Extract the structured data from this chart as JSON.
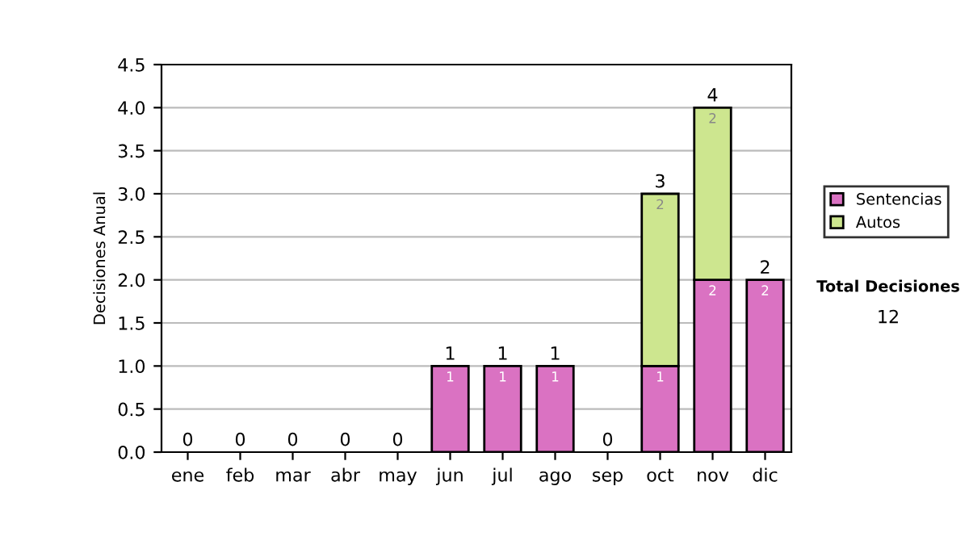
{
  "chart_data": {
    "type": "bar",
    "stacked": true,
    "ylabel": "Decisiones Anual",
    "categories": [
      "ene",
      "feb",
      "mar",
      "abr",
      "may",
      "jun",
      "jul",
      "ago",
      "sep",
      "oct",
      "nov",
      "dic"
    ],
    "series": [
      {
        "name": "Sentencias",
        "color": "#da72c2",
        "values": [
          0,
          0,
          0,
          0,
          0,
          1,
          1,
          1,
          0,
          1,
          2,
          2
        ],
        "value_labels": [
          null,
          null,
          null,
          null,
          null,
          "1",
          "1",
          "1",
          null,
          "1",
          "2",
          "2"
        ]
      },
      {
        "name": "Autos",
        "color": "#cde68f",
        "values": [
          0,
          0,
          0,
          0,
          0,
          0,
          0,
          0,
          0,
          2,
          2,
          0
        ],
        "value_labels": [
          null,
          null,
          null,
          null,
          null,
          null,
          null,
          null,
          null,
          "2",
          "2",
          null
        ]
      }
    ],
    "totals": [
      "0",
      "0",
      "0",
      "0",
      "0",
      "1",
      "1",
      "1",
      "0",
      "3",
      "4",
      "2"
    ],
    "ylim": [
      0,
      4.5
    ],
    "yticks": [
      {
        "value": 0,
        "label": "0.0"
      },
      {
        "value": 0.5,
        "label": "0.5"
      },
      {
        "value": 1,
        "label": "1.0"
      },
      {
        "value": 1.5,
        "label": "1.5"
      },
      {
        "value": 2,
        "label": "2.0"
      },
      {
        "value": 2.5,
        "label": "2.5"
      },
      {
        "value": 3,
        "label": "3.0"
      },
      {
        "value": 3.5,
        "label": "3.5"
      },
      {
        "value": 4,
        "label": "4.0"
      },
      {
        "value": 4.5,
        "label": "4.5"
      }
    ],
    "grid": "y",
    "legend": "right",
    "annotations": [
      "Total Decisiones",
      "12"
    ]
  }
}
